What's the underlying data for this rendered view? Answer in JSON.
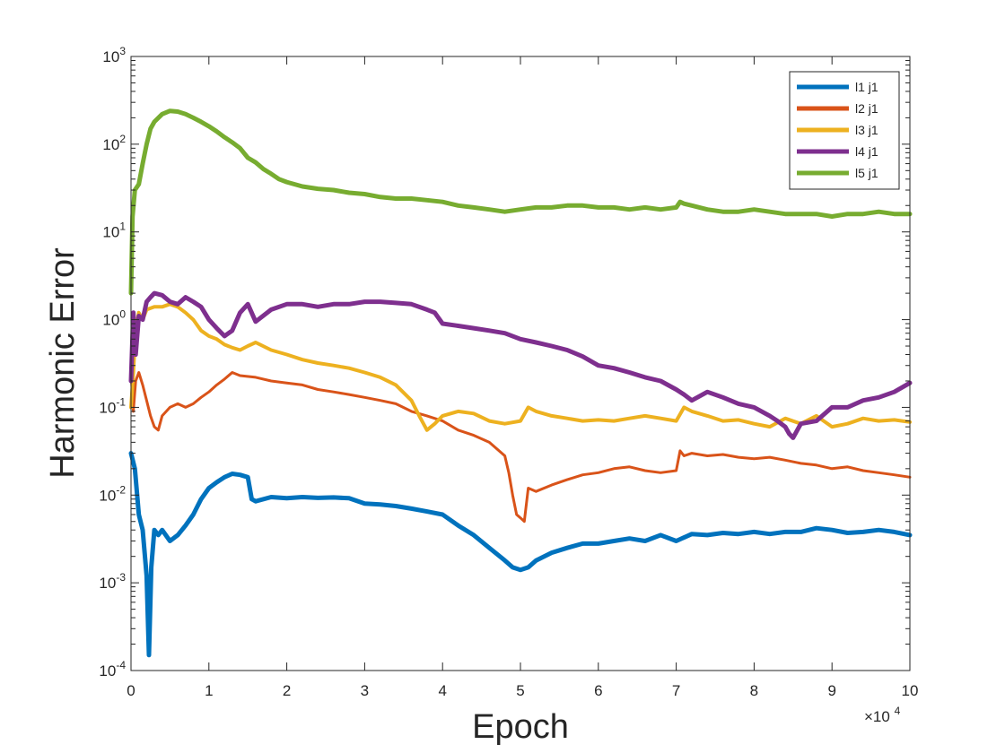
{
  "chart_data": {
    "type": "line",
    "xlabel": "Epoch",
    "ylabel": "Harmonic Error",
    "x_multiplier_label": "×10",
    "x_multiplier_exp": "4",
    "xlim": [
      0,
      100000
    ],
    "ylim": [
      0.0001,
      1000
    ],
    "yscale": "log",
    "x_ticks": [
      0,
      10000,
      20000,
      30000,
      40000,
      50000,
      60000,
      70000,
      80000,
      90000,
      100000
    ],
    "x_tick_labels": [
      "0",
      "1",
      "2",
      "3",
      "4",
      "5",
      "6",
      "7",
      "8",
      "9",
      "10"
    ],
    "y_ticks": [
      0.0001,
      0.001,
      0.01,
      0.1,
      1,
      10,
      100,
      1000
    ],
    "y_tick_exponents": [
      "-4",
      "-3",
      "-2",
      "-1",
      "0",
      "1",
      "2",
      "3"
    ],
    "y_tick_base": "10",
    "grid": false,
    "legend_position": "top-right",
    "series": [
      {
        "name": "l1 j1",
        "color": "#0072BD",
        "x": [
          0,
          500,
          1000,
          1500,
          2000,
          2300,
          2600,
          3000,
          3500,
          4000,
          5000,
          6000,
          7000,
          8000,
          9000,
          10000,
          11000,
          12000,
          13000,
          14000,
          15000,
          15500,
          16000,
          18000,
          20000,
          22000,
          24000,
          26000,
          28000,
          30000,
          32000,
          34000,
          36000,
          38000,
          40000,
          42000,
          44000,
          46000,
          48000,
          49000,
          50000,
          51000,
          52000,
          54000,
          56000,
          58000,
          60000,
          62000,
          64000,
          66000,
          68000,
          70000,
          72000,
          74000,
          76000,
          78000,
          80000,
          82000,
          84000,
          86000,
          88000,
          90000,
          92000,
          94000,
          96000,
          98000,
          100000
        ],
        "values": [
          0.03,
          0.02,
          0.006,
          0.004,
          0.0012,
          0.00015,
          0.0015,
          0.004,
          0.0035,
          0.004,
          0.003,
          0.0035,
          0.0045,
          0.006,
          0.009,
          0.012,
          0.014,
          0.016,
          0.0175,
          0.017,
          0.016,
          0.009,
          0.0085,
          0.0095,
          0.0092,
          0.0095,
          0.0093,
          0.0094,
          0.0092,
          0.008,
          0.0078,
          0.0075,
          0.007,
          0.0065,
          0.006,
          0.0045,
          0.0035,
          0.0025,
          0.0018,
          0.0015,
          0.0014,
          0.0015,
          0.0018,
          0.0022,
          0.0025,
          0.0028,
          0.0028,
          0.003,
          0.0032,
          0.003,
          0.0035,
          0.003,
          0.0036,
          0.0035,
          0.0037,
          0.0036,
          0.0038,
          0.0036,
          0.0038,
          0.0038,
          0.0042,
          0.004,
          0.0037,
          0.0038,
          0.004,
          0.0038,
          0.0035
        ]
      },
      {
        "name": "l2 j1",
        "color": "#D95319",
        "x": [
          0,
          300,
          600,
          1000,
          1500,
          2000,
          2500,
          3000,
          3500,
          4000,
          5000,
          6000,
          7000,
          8000,
          9000,
          10000,
          11000,
          12000,
          13000,
          14000,
          16000,
          18000,
          20000,
          22000,
          24000,
          26000,
          28000,
          30000,
          32000,
          34000,
          36000,
          38000,
          40000,
          42000,
          44000,
          46000,
          48000,
          48500,
          49000,
          49500,
          50000,
          50500,
          51000,
          52000,
          54000,
          56000,
          58000,
          60000,
          62000,
          64000,
          66000,
          68000,
          70000,
          70500,
          71000,
          72000,
          74000,
          76000,
          78000,
          80000,
          82000,
          84000,
          86000,
          88000,
          90000,
          92000,
          94000,
          96000,
          98000,
          100000
        ],
        "values": [
          0.25,
          0.09,
          0.2,
          0.25,
          0.18,
          0.12,
          0.08,
          0.06,
          0.055,
          0.08,
          0.1,
          0.11,
          0.1,
          0.11,
          0.13,
          0.15,
          0.18,
          0.21,
          0.25,
          0.23,
          0.22,
          0.2,
          0.19,
          0.18,
          0.16,
          0.15,
          0.14,
          0.13,
          0.12,
          0.11,
          0.09,
          0.08,
          0.07,
          0.055,
          0.048,
          0.04,
          0.028,
          0.018,
          0.01,
          0.006,
          0.0055,
          0.005,
          0.012,
          0.011,
          0.013,
          0.015,
          0.017,
          0.018,
          0.02,
          0.021,
          0.019,
          0.018,
          0.019,
          0.032,
          0.028,
          0.03,
          0.028,
          0.029,
          0.027,
          0.026,
          0.027,
          0.025,
          0.023,
          0.022,
          0.02,
          0.021,
          0.019,
          0.018,
          0.017,
          0.016
        ]
      },
      {
        "name": "l3 j1",
        "color": "#EDB120",
        "x": [
          0,
          300,
          600,
          1000,
          1500,
          2000,
          3000,
          4000,
          5000,
          6000,
          7000,
          8000,
          9000,
          10000,
          11000,
          12000,
          13000,
          14000,
          15000,
          16000,
          18000,
          20000,
          22000,
          24000,
          26000,
          28000,
          30000,
          32000,
          34000,
          36000,
          37000,
          38000,
          39000,
          40000,
          42000,
          44000,
          46000,
          48000,
          50000,
          51000,
          52000,
          54000,
          56000,
          58000,
          60000,
          62000,
          64000,
          66000,
          68000,
          70000,
          71000,
          72000,
          74000,
          76000,
          78000,
          80000,
          82000,
          84000,
          86000,
          88000,
          90000,
          92000,
          94000,
          96000,
          98000,
          100000
        ],
        "values": [
          0.1,
          0.25,
          0.8,
          1.2,
          1.0,
          1.3,
          1.4,
          1.4,
          1.5,
          1.4,
          1.2,
          1.0,
          0.75,
          0.65,
          0.6,
          0.52,
          0.48,
          0.45,
          0.5,
          0.55,
          0.45,
          0.4,
          0.35,
          0.32,
          0.3,
          0.28,
          0.25,
          0.22,
          0.18,
          0.12,
          0.08,
          0.055,
          0.065,
          0.08,
          0.09,
          0.085,
          0.07,
          0.065,
          0.07,
          0.1,
          0.09,
          0.08,
          0.075,
          0.07,
          0.072,
          0.07,
          0.075,
          0.08,
          0.075,
          0.07,
          0.1,
          0.09,
          0.08,
          0.07,
          0.072,
          0.065,
          0.06,
          0.075,
          0.065,
          0.08,
          0.06,
          0.065,
          0.075,
          0.07,
          0.072,
          0.068
        ]
      },
      {
        "name": "l4 j1",
        "color": "#7E2F8E",
        "x": [
          0,
          300,
          600,
          1000,
          1500,
          2000,
          2500,
          3000,
          4000,
          5000,
          6000,
          7000,
          8000,
          9000,
          10000,
          11000,
          12000,
          13000,
          14000,
          15000,
          16000,
          18000,
          20000,
          22000,
          24000,
          26000,
          28000,
          30000,
          32000,
          34000,
          36000,
          38000,
          39000,
          40000,
          42000,
          44000,
          46000,
          48000,
          50000,
          52000,
          54000,
          56000,
          58000,
          60000,
          62000,
          64000,
          66000,
          68000,
          70000,
          71000,
          72000,
          74000,
          76000,
          78000,
          80000,
          82000,
          83000,
          84000,
          84500,
          85000,
          86000,
          88000,
          90000,
          92000,
          94000,
          96000,
          98000,
          100000
        ],
        "values": [
          0.2,
          1.2,
          0.4,
          1.1,
          1.0,
          1.6,
          1.8,
          2.0,
          1.9,
          1.6,
          1.5,
          1.8,
          1.6,
          1.4,
          1.0,
          0.8,
          0.65,
          0.75,
          1.2,
          1.5,
          0.95,
          1.3,
          1.5,
          1.5,
          1.4,
          1.5,
          1.5,
          1.6,
          1.6,
          1.55,
          1.5,
          1.3,
          1.2,
          0.9,
          0.85,
          0.8,
          0.75,
          0.7,
          0.6,
          0.55,
          0.5,
          0.45,
          0.38,
          0.3,
          0.28,
          0.25,
          0.22,
          0.2,
          0.16,
          0.14,
          0.12,
          0.15,
          0.13,
          0.11,
          0.1,
          0.08,
          0.07,
          0.06,
          0.05,
          0.045,
          0.065,
          0.07,
          0.1,
          0.1,
          0.12,
          0.13,
          0.15,
          0.19
        ]
      },
      {
        "name": "l5 j1",
        "color": "#77AC30",
        "x": [
          0,
          200,
          500,
          1000,
          1500,
          2000,
          2500,
          3000,
          4000,
          5000,
          6000,
          7000,
          8000,
          9000,
          10000,
          11000,
          12000,
          13000,
          14000,
          15000,
          16000,
          17000,
          18000,
          19000,
          20000,
          22000,
          24000,
          26000,
          28000,
          30000,
          32000,
          34000,
          36000,
          38000,
          40000,
          42000,
          44000,
          46000,
          48000,
          50000,
          52000,
          54000,
          56000,
          58000,
          60000,
          62000,
          64000,
          66000,
          68000,
          70000,
          70500,
          71000,
          72000,
          74000,
          76000,
          78000,
          80000,
          82000,
          84000,
          86000,
          88000,
          90000,
          92000,
          94000,
          96000,
          98000,
          100000
        ],
        "values": [
          2,
          15,
          30,
          35,
          60,
          100,
          150,
          180,
          220,
          240,
          235,
          220,
          200,
          180,
          160,
          140,
          120,
          105,
          90,
          70,
          62,
          52,
          46,
          40,
          37,
          33,
          31,
          30,
          28,
          27,
          25,
          24,
          24,
          23,
          22,
          20,
          19,
          18,
          17,
          18,
          19,
          19,
          20,
          20,
          19,
          19,
          18,
          19,
          18,
          19,
          22,
          21,
          20,
          18,
          17,
          17,
          18,
          17,
          16,
          16,
          16,
          15,
          16,
          16,
          17,
          16,
          16
        ]
      }
    ]
  }
}
